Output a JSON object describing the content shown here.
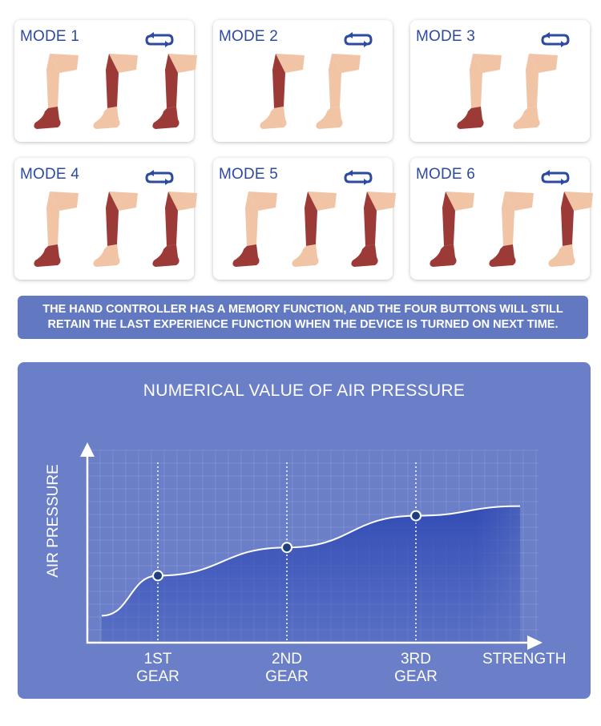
{
  "modes": [
    {
      "label": "MODE 1",
      "legs": [
        "ankle",
        "calf",
        "calf-ankle"
      ]
    },
    {
      "label": "MODE 2",
      "legs": [
        "calf",
        "none"
      ]
    },
    {
      "label": "MODE 3",
      "legs": [
        "ankle",
        "none"
      ]
    },
    {
      "label": "MODE 4",
      "legs": [
        "ankle",
        "calf",
        "calf-ankle"
      ]
    },
    {
      "label": "MODE 5",
      "legs": [
        "ankle",
        "calf",
        "calf-ankle"
      ]
    },
    {
      "label": "MODE 6",
      "legs": [
        "calf-ankle",
        "ankle",
        "calf"
      ]
    }
  ],
  "icons": {
    "cycle": "cycle-arrows-icon"
  },
  "colors": {
    "mode_label": "#2d4aa2",
    "skin": "#f1c4a6",
    "pressure": "#9b3a36",
    "banner_bg": "#6279c2",
    "chart_bg": "#6a7fc8"
  },
  "banner": {
    "line1": "THE HAND CONTROLLER HAS A MEMORY FUNCTION, AND THE FOUR BUTTONS WILL STILL",
    "line2": "RETAIN THE LAST EXPERIENCE FUNCTION WHEN THE DEVICE IS TURNED ON NEXT TIME."
  },
  "chart_data": {
    "type": "area",
    "title": "NUMERICAL VALUE OF AIR PRESSURE",
    "xlabel": "STRENGTH",
    "ylabel": "AIR PRESSURE",
    "categories": [
      "1ST GEAR",
      "2ND GEAR",
      "3RD GEAR"
    ],
    "points": [
      {
        "x": 1,
        "y": 38
      },
      {
        "x": 2,
        "y": 54
      },
      {
        "x": 3,
        "y": 72
      }
    ],
    "ylim": [
      0,
      100
    ],
    "grid": true,
    "legend": "none"
  }
}
